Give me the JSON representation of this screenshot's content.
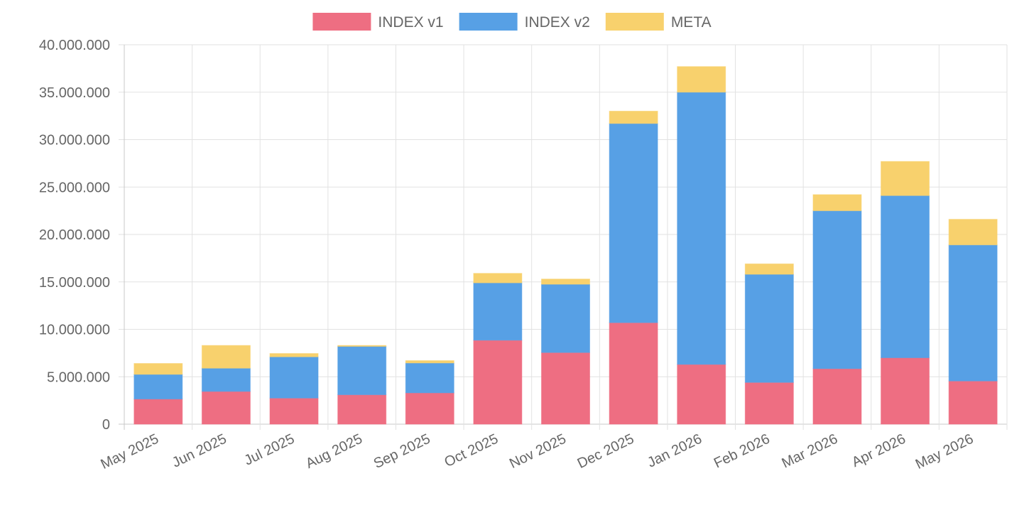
{
  "chart_data": {
    "type": "bar",
    "stacked": true,
    "categories": [
      "May 2025",
      "Jun 2025",
      "Jul 2025",
      "Aug 2025",
      "Sep 2025",
      "Oct 2025",
      "Nov 2025",
      "Dec 2025",
      "Jan 2026",
      "Feb 2026",
      "Mar 2026",
      "Apr 2026",
      "May 2026"
    ],
    "series": [
      {
        "name": "INDEX v1",
        "color": "#ee6e82",
        "values": [
          2650000,
          3450000,
          2750000,
          3100000,
          3300000,
          8850000,
          7550000,
          10700000,
          6300000,
          4400000,
          5850000,
          7000000,
          4550000
        ]
      },
      {
        "name": "INDEX v2",
        "color": "#57a0e5",
        "values": [
          2600000,
          2450000,
          4350000,
          5100000,
          3150000,
          6050000,
          7200000,
          21000000,
          28700000,
          11400000,
          16650000,
          17100000,
          14350000
        ]
      },
      {
        "name": "META",
        "color": "#f8d16d",
        "values": [
          1150000,
          2400000,
          350000,
          100000,
          250000,
          1000000,
          550000,
          1300000,
          2700000,
          1100000,
          1700000,
          3600000,
          2700000
        ]
      }
    ],
    "y_ticks": [
      "0",
      "5.000.000",
      "10.000.000",
      "15.000.000",
      "20.000.000",
      "25.000.000",
      "30.000.000",
      "35.000.000",
      "40.000.000"
    ],
    "ylim": [
      0,
      40000000
    ],
    "grid": true,
    "legend": "top-center"
  }
}
